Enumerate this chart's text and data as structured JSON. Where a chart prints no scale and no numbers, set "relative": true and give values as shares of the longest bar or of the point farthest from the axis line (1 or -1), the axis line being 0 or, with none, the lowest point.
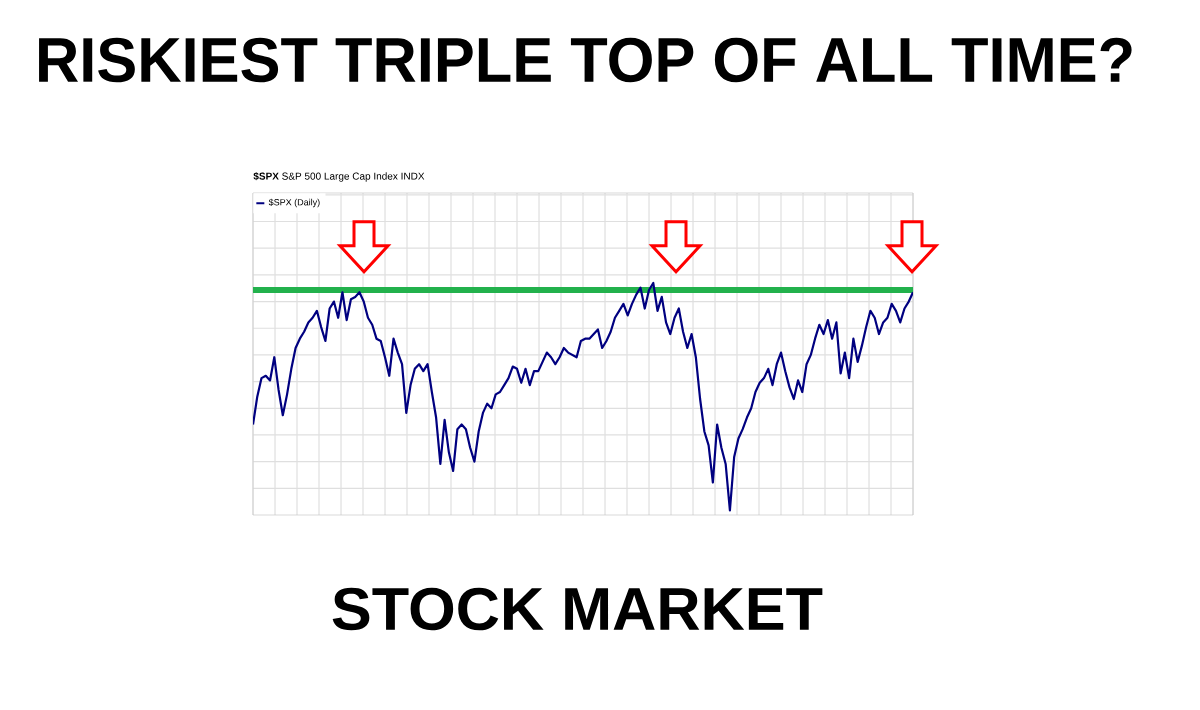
{
  "chart_data": {
    "type": "line",
    "title": "RISKIEST TRIPLE TOP OF ALL TIME?",
    "subtitle": "**$SPX** S&P 500 Large Cap Index INDX",
    "annotations": [
      "STOCK MARKET"
    ],
    "relative": true,
    "grid": true,
    "legend": "top left",
    "categories": [
      null,
      null,
      null,
      null,
      null,
      null,
      null,
      null,
      null,
      null,
      null,
      null,
      null,
      null,
      null,
      null,
      null,
      null,
      null,
      null,
      null,
      null,
      null,
      null,
      null,
      null,
      null,
      null,
      null,
      null,
      null,
      null,
      null,
      null,
      null,
      null,
      null,
      null,
      null,
      null,
      null,
      null,
      null,
      null,
      null,
      null,
      null,
      null,
      null,
      null,
      null,
      null,
      null,
      null,
      null,
      null,
      null,
      null,
      null,
      null,
      null,
      null,
      null,
      null,
      null,
      null,
      null,
      null,
      null,
      null,
      null,
      null,
      null,
      null,
      null,
      null,
      null,
      null,
      null,
      null,
      null,
      null,
      null,
      null,
      null,
      null,
      null,
      null,
      null,
      null,
      null,
      null,
      null,
      null,
      null,
      null,
      null,
      null,
      null,
      null,
      null,
      null,
      null,
      null,
      null,
      null,
      null,
      null,
      null,
      null,
      null,
      null,
      null,
      null,
      null,
      null,
      null,
      null,
      null,
      null,
      null,
      null,
      null,
      null,
      null,
      null,
      null,
      null,
      null,
      null,
      null,
      null,
      null,
      null,
      null,
      null,
      null,
      null,
      null,
      null,
      null,
      null,
      null,
      null,
      null,
      null,
      null,
      null,
      null,
      null,
      null,
      null,
      null,
      null,
      null,
      null
    ],
    "series": [
      {
        "name": "$SPX (Daily)",
        "color": "#000080",
        "values": [
          0.39,
          0.51,
          0.59,
          0.6,
          0.58,
          0.68,
          0.54,
          0.43,
          0.52,
          0.63,
          0.72,
          0.76,
          0.79,
          0.83,
          0.85,
          0.88,
          0.81,
          0.75,
          0.89,
          0.92,
          0.85,
          0.96,
          0.84,
          0.93,
          0.94,
          0.96,
          0.92,
          0.85,
          0.82,
          0.76,
          0.75,
          0.68,
          0.6,
          0.76,
          0.7,
          0.65,
          0.44,
          0.56,
          0.63,
          0.65,
          0.62,
          0.65,
          0.53,
          0.42,
          0.22,
          0.41,
          0.27,
          0.19,
          0.37,
          0.39,
          0.37,
          0.29,
          0.23,
          0.36,
          0.44,
          0.48,
          0.46,
          0.52,
          0.53,
          0.56,
          0.59,
          0.64,
          0.63,
          0.57,
          0.63,
          0.56,
          0.62,
          0.62,
          0.66,
          0.7,
          0.68,
          0.65,
          0.68,
          0.72,
          0.7,
          0.69,
          0.68,
          0.75,
          0.76,
          0.76,
          0.78,
          0.8,
          0.72,
          0.75,
          0.79,
          0.85,
          0.88,
          0.91,
          0.86,
          0.91,
          0.95,
          0.98,
          0.89,
          0.97,
          1.0,
          0.88,
          0.94,
          0.83,
          0.78,
          0.85,
          0.89,
          0.79,
          0.72,
          0.78,
          0.68,
          0.5,
          0.36,
          0.3,
          0.14,
          0.39,
          0.29,
          0.22,
          0.02,
          0.25,
          0.33,
          0.37,
          0.42,
          0.46,
          0.53,
          0.57,
          0.59,
          0.63,
          0.56,
          0.65,
          0.7,
          0.62,
          0.55,
          0.5,
          0.58,
          0.53,
          0.65,
          0.69,
          0.76,
          0.82,
          0.78,
          0.84,
          0.76,
          0.83,
          0.61,
          0.7,
          0.59,
          0.76,
          0.66,
          0.73,
          0.81,
          0.88,
          0.85,
          0.78,
          0.83,
          0.85,
          0.91,
          0.88,
          0.83,
          0.89,
          0.92,
          0.96
        ]
      }
    ],
    "ref_lines": [
      {
        "axis": "y",
        "value": 0.97,
        "color": "#22b14c"
      }
    ]
  }
}
